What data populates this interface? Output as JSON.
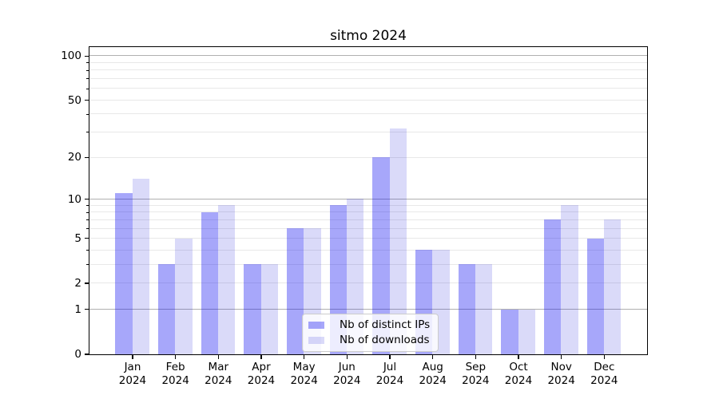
{
  "chart_data": {
    "type": "bar",
    "title": "sitmo 2024",
    "categories": [
      "Jan",
      "Feb",
      "Mar",
      "Apr",
      "May",
      "Jun",
      "Jul",
      "Aug",
      "Sep",
      "Oct",
      "Nov",
      "Dec"
    ],
    "category_year": "2024",
    "series": [
      {
        "name": "Nb of distinct IPs",
        "color": "#a7a7fa",
        "color_rgba": "rgba(10,10,240,0.36)",
        "values": [
          11,
          3,
          8,
          3,
          6,
          9,
          20,
          4,
          3,
          1,
          7,
          5
        ]
      },
      {
        "name": "Nb of downloads",
        "color": "#d9d9f8",
        "color_rgba": "rgba(25,25,215,0.16)",
        "values": [
          14,
          5,
          9,
          3,
          6,
          10,
          32,
          4,
          3,
          1,
          9,
          7
        ]
      }
    ],
    "y_scale": "log1p",
    "ylim": [
      0,
      115
    ],
    "y_ticks": [
      {
        "value": 0,
        "label": "0"
      },
      {
        "value": 1,
        "label": "1"
      },
      {
        "value": 2,
        "label": "2"
      },
      {
        "value": 5,
        "label": "5"
      },
      {
        "value": 10,
        "label": "10"
      },
      {
        "value": 20,
        "label": "20"
      },
      {
        "value": 50,
        "label": "50"
      },
      {
        "value": 100,
        "label": "100"
      }
    ],
    "y_major_gridlines": [
      1,
      10,
      100
    ],
    "y_minor_gridlines": [
      2,
      3,
      4,
      5,
      6,
      7,
      8,
      9,
      20,
      30,
      40,
      50,
      60,
      70,
      80,
      90
    ],
    "grid": true,
    "legend_position": "lower center",
    "colors": {
      "grid_major": "#b0b0b0",
      "grid_minor": "#e8e8e8",
      "spine": "#000000",
      "background": "#ffffff",
      "legend_bg": "rgba(255,255,255,0.8)",
      "legend_border": "#cccccc"
    }
  }
}
